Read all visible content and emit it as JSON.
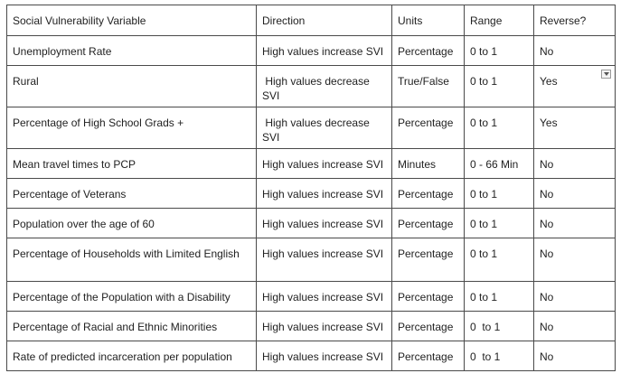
{
  "table": {
    "headers": {
      "variable": "Social Vulnerability Variable",
      "direction": "Direction",
      "units": "Units",
      "range": "Range",
      "reverse": "Reverse?"
    },
    "rows": [
      {
        "variable": "Unemployment Rate",
        "direction": "High values increase SVI",
        "units": "Percentage",
        "range": "0 to 1",
        "reverse": "No"
      },
      {
        "variable": "Rural",
        "direction": " High values decrease SVI",
        "units": "True/False",
        "range": "0 to 1",
        "reverse": "Yes"
      },
      {
        "variable": "Percentage of High School Grads +",
        "direction": " High values decrease SVI",
        "units": "Percentage",
        "range": "0 to 1",
        "reverse": "Yes"
      },
      {
        "variable": "Mean travel times to PCP",
        "direction": "High values increase SVI",
        "units": "Minutes",
        "range": "0 - 66 Min",
        "reverse": "No"
      },
      {
        "variable": "Percentage of Veterans",
        "direction": "High values increase SVI",
        "units": "Percentage",
        "range": "0 to 1",
        "reverse": "No"
      },
      {
        "variable": "Population over the age of 60",
        "direction": "High values increase SVI",
        "units": "Percentage",
        "range": "0 to 1",
        "reverse": "No"
      },
      {
        "variable": "Percentage of Households with Limited English",
        "direction": "High values increase SVI",
        "units": "Percentage",
        "range": "0 to 1",
        "reverse": "No"
      },
      {
        "variable": "Percentage of the Population with a Disability",
        "direction": "High values increase SVI",
        "units": "Percentage",
        "range": "0 to 1",
        "reverse": "No"
      },
      {
        "variable": "Percentage of Racial and Ethnic Minorities",
        "direction": "High values increase SVI",
        "units": "Percentage",
        "range": "0  to 1",
        "reverse": "No"
      },
      {
        "variable": "Rate of predicted incarceration per population",
        "direction": "High values increase SVI",
        "units": "Percentage",
        "range": "0  to 1",
        "reverse": "No"
      }
    ],
    "dropdown_icon": "chevron-down-icon"
  }
}
